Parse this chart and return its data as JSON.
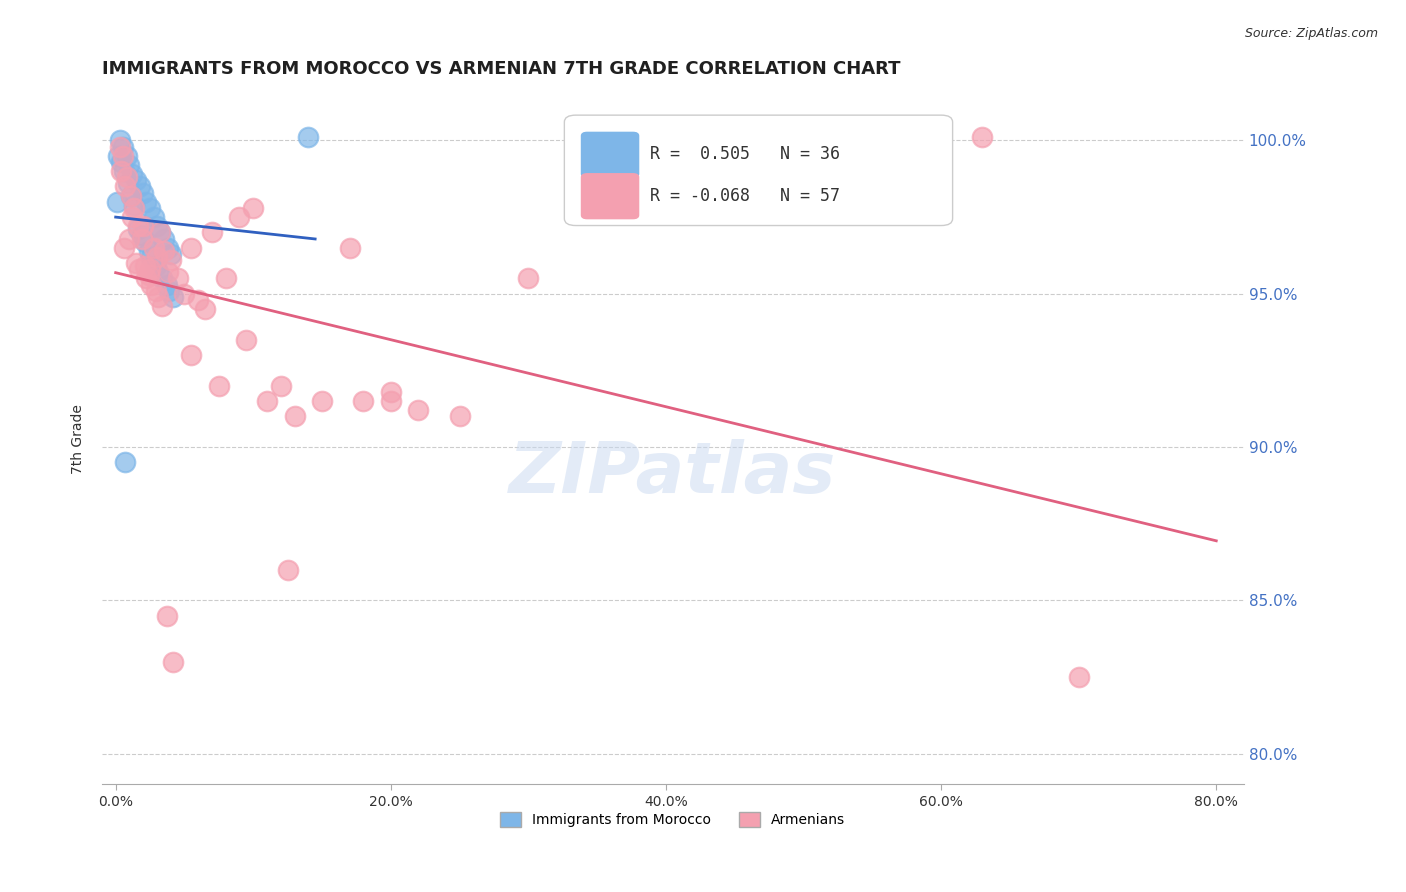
{
  "title": "IMMIGRANTS FROM MOROCCO VS ARMENIAN 7TH GRADE CORRELATION CHART",
  "source": "Source: ZipAtlas.com",
  "xlabel": "",
  "ylabel": "7th Grade",
  "legend_label_blue": "Immigrants from Morocco",
  "legend_label_pink": "Armenians",
  "R_blue": 0.505,
  "N_blue": 36,
  "R_pink": -0.068,
  "N_pink": 57,
  "xlim": [
    -1.0,
    82.0
  ],
  "ylim": [
    79.0,
    101.5
  ],
  "yticks": [
    80.0,
    85.0,
    90.0,
    95.0,
    100.0
  ],
  "xticks": [
    0.0,
    20.0,
    40.0,
    60.0,
    80.0
  ],
  "blue_color": "#7EB6E8",
  "blue_line_color": "#3060C0",
  "pink_color": "#F4A0B0",
  "pink_line_color": "#E06080",
  "watermark": "ZIPatlas",
  "title_color": "#202020",
  "axis_label_color": "#4472C4",
  "blue_x": [
    0.3,
    0.5,
    0.8,
    1.0,
    1.2,
    1.5,
    1.8,
    2.0,
    2.2,
    2.5,
    2.8,
    3.0,
    3.2,
    3.5,
    3.8,
    4.0,
    0.2,
    0.4,
    0.6,
    0.9,
    1.1,
    1.3,
    1.6,
    1.9,
    2.1,
    2.4,
    2.6,
    2.9,
    3.1,
    3.4,
    3.7,
    3.9,
    4.2,
    14.0,
    0.1,
    0.7
  ],
  "blue_y": [
    100.0,
    99.8,
    99.5,
    99.2,
    98.9,
    98.7,
    98.5,
    98.3,
    98.0,
    97.8,
    97.5,
    97.2,
    97.0,
    96.8,
    96.5,
    96.3,
    99.5,
    99.3,
    99.0,
    98.6,
    98.2,
    97.9,
    97.1,
    96.9,
    96.7,
    96.4,
    96.2,
    95.9,
    95.7,
    95.5,
    95.3,
    95.1,
    94.9,
    100.1,
    98.0,
    89.5
  ],
  "pink_x": [
    0.3,
    0.5,
    0.6,
    0.8,
    1.0,
    1.2,
    1.5,
    1.7,
    2.0,
    2.2,
    2.5,
    2.8,
    3.0,
    3.2,
    3.5,
    3.8,
    4.0,
    4.5,
    5.0,
    5.5,
    6.0,
    6.5,
    7.0,
    8.0,
    9.0,
    10.0,
    11.0,
    12.0,
    13.0,
    15.0,
    17.0,
    18.0,
    20.0,
    22.0,
    25.0,
    0.4,
    0.7,
    1.1,
    1.3,
    1.6,
    1.9,
    2.1,
    2.4,
    2.6,
    2.9,
    3.1,
    3.4,
    3.7,
    4.2,
    5.5,
    7.5,
    9.5,
    12.5,
    20.0,
    63.0,
    70.0,
    30.0
  ],
  "pink_y": [
    99.8,
    99.5,
    96.5,
    98.8,
    96.8,
    97.5,
    96.0,
    95.8,
    97.2,
    95.5,
    95.8,
    96.5,
    96.2,
    97.0,
    96.4,
    95.7,
    96.1,
    95.5,
    95.0,
    96.5,
    94.8,
    94.5,
    97.0,
    95.5,
    97.5,
    97.8,
    91.5,
    92.0,
    91.0,
    91.5,
    96.5,
    91.5,
    91.8,
    91.2,
    91.0,
    99.0,
    98.5,
    98.2,
    97.8,
    97.2,
    96.8,
    95.9,
    95.6,
    95.3,
    95.1,
    94.9,
    94.6,
    84.5,
    83.0,
    93.0,
    92.0,
    93.5,
    86.0,
    91.5,
    100.1,
    82.5,
    95.5
  ]
}
